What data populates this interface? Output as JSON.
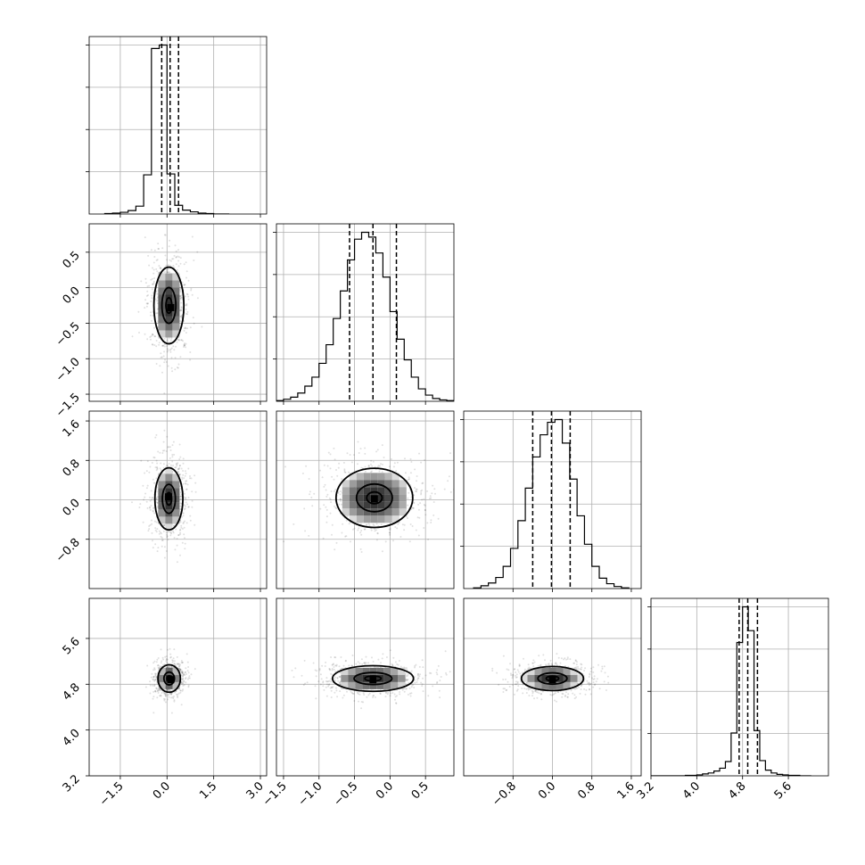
{
  "chart_data": {
    "type": "corner",
    "grid": true,
    "parameters": [
      {
        "range": [
          -2.5,
          3.2
        ],
        "ticks": [
          -1.5,
          0.0,
          1.5,
          3.0
        ],
        "tick_labels": [
          "−1.5",
          "0.0",
          "1.5",
          "3.0"
        ]
      },
      {
        "range": [
          -1.6,
          0.9
        ],
        "ticks": [
          -1.5,
          -1.0,
          -0.5,
          0.0,
          0.5
        ],
        "tick_labels": [
          "−1.5",
          "−1.0",
          "−0.5",
          "0.0",
          "0.5"
        ]
      },
      {
        "range": [
          -1.8,
          1.8
        ],
        "ticks": [
          -0.8,
          0.0,
          0.8,
          1.6
        ],
        "tick_labels": [
          "−0.8",
          "0.0",
          "0.8",
          "1.6"
        ]
      },
      {
        "range": [
          3.2,
          6.3
        ],
        "ticks": [
          3.2,
          4.0,
          4.8,
          5.6
        ],
        "tick_labels": [
          "3.2",
          "4.0",
          "4.8",
          "5.6"
        ]
      }
    ],
    "histograms": [
      {
        "bins": [
          -2.0,
          -1.75,
          -1.5,
          -1.25,
          -1.0,
          -0.75,
          -0.5,
          -0.25,
          0.0,
          0.25,
          0.5,
          0.75,
          1.0,
          1.25,
          1.5,
          1.75,
          2.0
        ],
        "values": [
          1,
          2,
          4,
          8,
          18,
          90,
          380,
          388,
          92,
          20,
          9,
          5,
          2,
          1,
          0,
          0
        ],
        "quantiles": [
          -0.17,
          0.1,
          0.37
        ]
      },
      {
        "bins": [
          -1.6,
          -1.5,
          -1.4,
          -1.3,
          -1.2,
          -1.1,
          -1.0,
          -0.9,
          -0.8,
          -0.7,
          -0.6,
          -0.5,
          -0.4,
          -0.3,
          -0.2,
          -0.1,
          0.0,
          0.1,
          0.2,
          0.3,
          0.4,
          0.5,
          0.6,
          0.7,
          0.8,
          0.9
        ],
        "values": [
          1,
          3,
          6,
          12,
          22,
          35,
          55,
          82,
          120,
          160,
          205,
          235,
          245,
          238,
          215,
          180,
          130,
          90,
          60,
          35,
          18,
          9,
          4,
          2,
          1
        ],
        "quantiles": [
          -0.57,
          -0.24,
          0.09
        ]
      },
      {
        "bins": [
          -1.6,
          -1.45,
          -1.3,
          -1.15,
          -1.0,
          -0.85,
          -0.7,
          -0.55,
          -0.4,
          -0.25,
          -0.1,
          0.05,
          0.2,
          0.35,
          0.5,
          0.65,
          0.8,
          0.95,
          1.1,
          1.25,
          1.4,
          1.55
        ],
        "values": [
          1,
          4,
          8,
          16,
          32,
          58,
          98,
          145,
          190,
          222,
          240,
          244,
          210,
          158,
          105,
          64,
          32,
          15,
          7,
          3,
          1
        ],
        "quantiles": [
          -0.4,
          -0.02,
          0.36
        ]
      },
      {
        "bins": [
          3.2,
          3.3,
          3.4,
          3.5,
          3.6,
          3.7,
          3.8,
          3.9,
          4.0,
          4.1,
          4.2,
          4.3,
          4.4,
          4.5,
          4.6,
          4.7,
          4.8,
          4.9,
          5.0,
          5.1,
          5.2,
          5.3,
          5.4,
          5.5,
          5.6,
          5.7,
          5.8,
          5.9,
          6.0
        ],
        "values": [
          0,
          0,
          0,
          0,
          0,
          0,
          1,
          1,
          2,
          4,
          6,
          10,
          16,
          30,
          90,
          280,
          355,
          305,
          95,
          32,
          12,
          6,
          3,
          2,
          1,
          1,
          0,
          0
        ],
        "quantiles": [
          4.74,
          4.89,
          5.06
        ]
      }
    ],
    "pairs": [
      {
        "x": 0,
        "y": 1,
        "center": [
          0.06,
          -0.25
        ],
        "sd": [
          0.32,
          0.36
        ],
        "levels": [
          0.3,
          0.7,
          1.5
        ],
        "peak": [
          0.12,
          -0.28
        ]
      },
      {
        "x": 0,
        "y": 2,
        "center": [
          0.06,
          0.02
        ],
        "sd": [
          0.3,
          0.42
        ],
        "levels": [
          0.3,
          0.7,
          1.5
        ],
        "peak": [
          0.05,
          0.06
        ]
      },
      {
        "x": 1,
        "y": 2,
        "center": [
          -0.22,
          0.04
        ],
        "sd": [
          0.36,
          0.4
        ],
        "levels": [
          0.3,
          0.7,
          1.5
        ],
        "peak": [
          -0.22,
          0.02
        ]
      },
      {
        "x": 0,
        "y": 3,
        "center": [
          0.07,
          4.9
        ],
        "sd": [
          0.24,
          0.16
        ],
        "levels": [
          0.3,
          0.7,
          1.5
        ],
        "peak": [
          0.12,
          4.88
        ]
      },
      {
        "x": 1,
        "y": 3,
        "center": [
          -0.24,
          4.9
        ],
        "sd": [
          0.38,
          0.15
        ],
        "levels": [
          0.3,
          0.7,
          1.5
        ],
        "peak": [
          -0.24,
          4.88
        ]
      },
      {
        "x": 2,
        "y": 3,
        "center": [
          0.0,
          4.9
        ],
        "sd": [
          0.42,
          0.14
        ],
        "levels": [
          0.3,
          0.7,
          1.5
        ],
        "peak": [
          0.0,
          4.88
        ]
      }
    ]
  }
}
